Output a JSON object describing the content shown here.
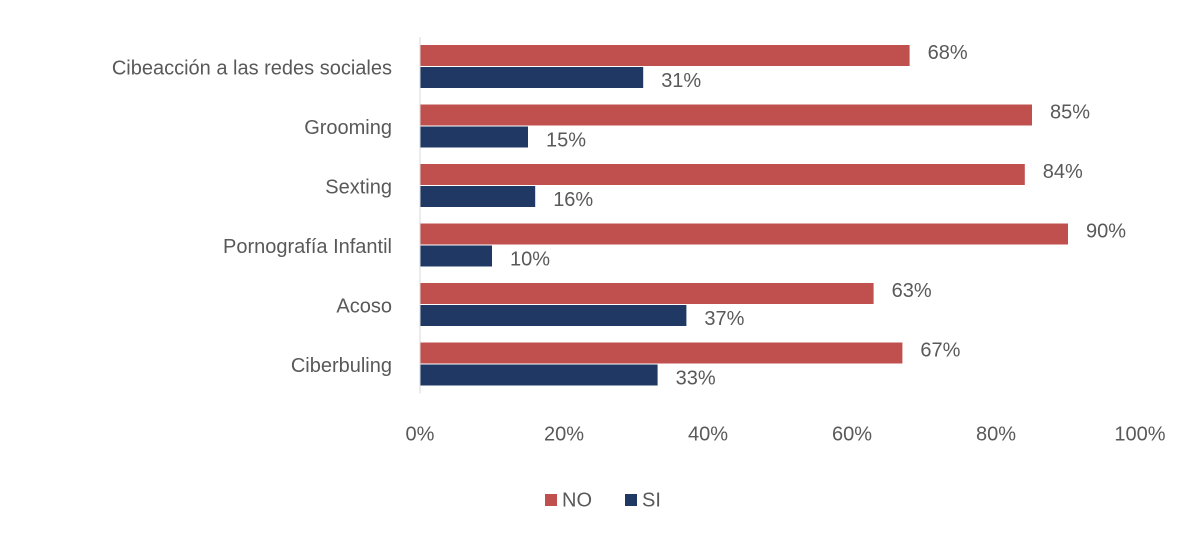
{
  "chart_data": {
    "type": "bar",
    "orientation": "horizontal",
    "categories": [
      "Cibeacción a las redes sociales",
      "Grooming",
      "Sexting",
      "Pornografía Infantil",
      "Acoso",
      "Ciberbuling"
    ],
    "series": [
      {
        "name": "NO",
        "color": "#C0504D",
        "values": [
          68,
          85,
          84,
          90,
          63,
          67
        ],
        "labels": [
          "68%",
          "85%",
          "84%",
          "90%",
          "63%",
          "67%"
        ]
      },
      {
        "name": "SI",
        "color": "#1F3864",
        "values": [
          31,
          15,
          16,
          10,
          37,
          33
        ],
        "labels": [
          "31%",
          "15%",
          "16%",
          "10%",
          "37%",
          "33%"
        ]
      }
    ],
    "xlim": [
      0,
      100
    ],
    "xticks": [
      "0%",
      "20%",
      "40%",
      "60%",
      "80%",
      "100%"
    ],
    "grid": false,
    "legend_position": "bottom"
  }
}
